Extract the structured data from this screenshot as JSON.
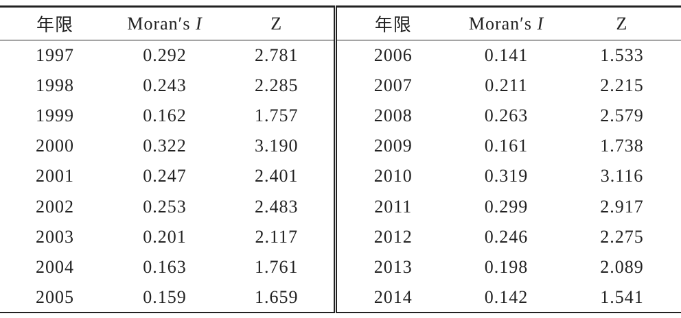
{
  "table": {
    "header": [
      "年限",
      {
        "name": "Moran′s",
        "symbol": "I"
      },
      "Z",
      "年限",
      {
        "name": "Moran′s",
        "symbol": "I"
      },
      "Z"
    ],
    "rows": [
      [
        "1997",
        "0.292",
        "2.781",
        "2006",
        "0.141",
        "1.533"
      ],
      [
        "1998",
        "0.243",
        "2.285",
        "2007",
        "0.211",
        "2.215"
      ],
      [
        "1999",
        "0.162",
        "1.757",
        "2008",
        "0.263",
        "2.579"
      ],
      [
        "2000",
        "0.322",
        "3.190",
        "2009",
        "0.161",
        "1.738"
      ],
      [
        "2001",
        "0.247",
        "2.401",
        "2010",
        "0.319",
        "3.116"
      ],
      [
        "2002",
        "0.253",
        "2.483",
        "2011",
        "0.299",
        "2.917"
      ],
      [
        "2003",
        "0.201",
        "2.117",
        "2012",
        "0.246",
        "2.275"
      ],
      [
        "2004",
        "0.163",
        "1.761",
        "2013",
        "0.198",
        "2.089"
      ],
      [
        "2005",
        "0.159",
        "1.659",
        "2014",
        "0.142",
        "1.541"
      ]
    ]
  }
}
